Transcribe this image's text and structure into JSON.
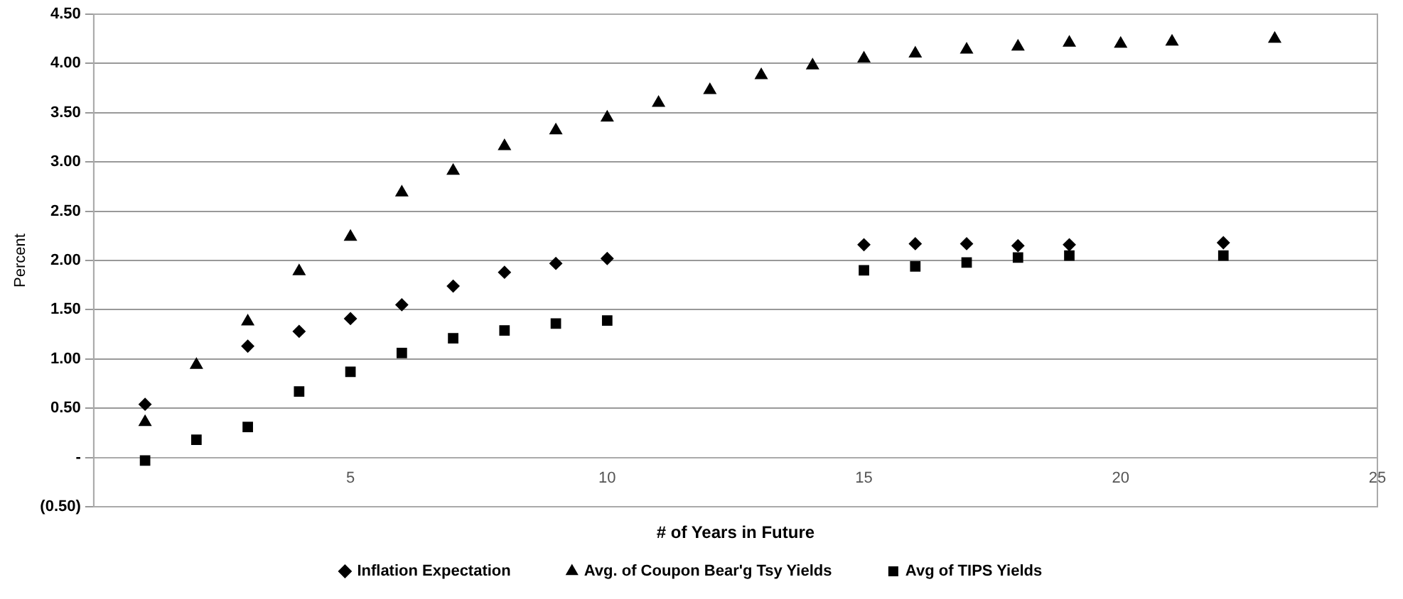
{
  "chart_data": {
    "type": "scatter",
    "xlabel": "# of Years in Future",
    "ylabel": "Percent",
    "xlim": [
      0,
      25
    ],
    "xticks": [
      5,
      10,
      15,
      20,
      25
    ],
    "ylim": [
      -0.5,
      4.5
    ],
    "yticks": [
      {
        "value": -0.5,
        "label": "(0.50)"
      },
      {
        "value": 0,
        "label": "-"
      },
      {
        "value": 0.5,
        "label": "0.50"
      },
      {
        "value": 1,
        "label": "1.00"
      },
      {
        "value": 1.5,
        "label": "1.50"
      },
      {
        "value": 2,
        "label": "2.00"
      },
      {
        "value": 2.5,
        "label": "2.50"
      },
      {
        "value": 3,
        "label": "3.00"
      },
      {
        "value": 3.5,
        "label": "3.50"
      },
      {
        "value": 4,
        "label": "4.00"
      },
      {
        "value": 4.5,
        "label": "4.50"
      }
    ],
    "grid": "y",
    "legend": "bottom",
    "series": [
      {
        "name": "Inflation Expectation",
        "color": "#000000",
        "marker": "diamond",
        "x": [
          1,
          3,
          4,
          5,
          6,
          7,
          8,
          9,
          10,
          15,
          16,
          17,
          18,
          19,
          22
        ],
        "values": [
          0.54,
          1.13,
          1.28,
          1.41,
          1.55,
          1.74,
          1.88,
          1.97,
          2.02,
          2.16,
          2.17,
          2.17,
          2.15,
          2.16,
          2.18
        ]
      },
      {
        "name": "Avg. of Coupon Bear'g Tsy Yields",
        "color": "#000000",
        "marker": "triangle",
        "x": [
          1,
          2,
          3,
          4,
          5,
          6,
          7,
          8,
          9,
          10,
          11,
          12,
          13,
          14,
          15,
          16,
          17,
          18,
          19,
          20,
          21,
          23
        ],
        "values": [
          0.36,
          0.94,
          1.38,
          1.89,
          2.24,
          2.69,
          2.91,
          3.16,
          3.32,
          3.45,
          3.6,
          3.73,
          3.88,
          3.98,
          4.05,
          4.1,
          4.14,
          4.17,
          4.21,
          4.2,
          4.22,
          4.25
        ]
      },
      {
        "name": "Avg of TIPS Yields",
        "color": "#000000",
        "marker": "square",
        "x": [
          1,
          2,
          3,
          4,
          5,
          6,
          7,
          8,
          9,
          10,
          15,
          16,
          17,
          18,
          19,
          22
        ],
        "values": [
          -0.03,
          0.18,
          0.31,
          0.67,
          0.87,
          1.06,
          1.21,
          1.29,
          1.36,
          1.39,
          1.9,
          1.94,
          1.98,
          2.03,
          2.05,
          2.05
        ]
      }
    ]
  }
}
